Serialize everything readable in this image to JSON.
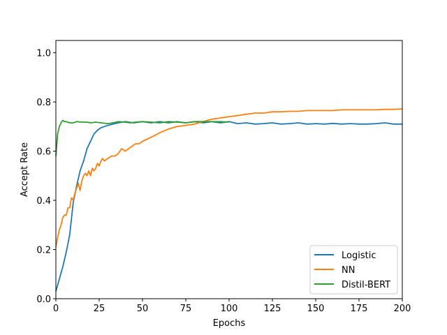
{
  "chart_data": {
    "type": "line",
    "title": "",
    "xlabel": "Epochs",
    "ylabel": "Accept Rate",
    "xlim": [
      0,
      200
    ],
    "ylim": [
      0,
      1.05
    ],
    "xticks": [
      0,
      25,
      50,
      75,
      100,
      125,
      150,
      175,
      200
    ],
    "xtick_labels": [
      "0",
      "25",
      "50",
      "75",
      "100",
      "125",
      "150",
      "175",
      "200"
    ],
    "yticks": [
      0.0,
      0.2,
      0.4,
      0.6,
      0.8,
      1.0
    ],
    "ytick_labels": [
      "0.0",
      "0.2",
      "0.4",
      "0.6",
      "0.8",
      "1.0"
    ],
    "grid": false,
    "legend_position": "lower-right",
    "series": [
      {
        "name": "Logistic",
        "color": "#1f77b4",
        "x": [
          0,
          2,
          4,
          6,
          8,
          10,
          12,
          14,
          16,
          18,
          20,
          22,
          24,
          26,
          28,
          30,
          33,
          36,
          40,
          45,
          50,
          55,
          60,
          65,
          70,
          75,
          80,
          85,
          90,
          95,
          100,
          105,
          110,
          115,
          120,
          125,
          130,
          135,
          140,
          145,
          150,
          155,
          160,
          165,
          170,
          175,
          180,
          185,
          190,
          195,
          200
        ],
        "y": [
          0.03,
          0.08,
          0.13,
          0.19,
          0.26,
          0.39,
          0.46,
          0.52,
          0.56,
          0.61,
          0.64,
          0.67,
          0.685,
          0.695,
          0.7,
          0.705,
          0.71,
          0.715,
          0.72,
          0.715,
          0.72,
          0.715,
          0.72,
          0.715,
          0.72,
          0.715,
          0.72,
          0.715,
          0.72,
          0.715,
          0.72,
          0.712,
          0.715,
          0.71,
          0.712,
          0.715,
          0.71,
          0.712,
          0.715,
          0.71,
          0.712,
          0.71,
          0.713,
          0.71,
          0.712,
          0.71,
          0.71,
          0.712,
          0.715,
          0.71,
          0.71
        ]
      },
      {
        "name": "NN",
        "color": "#ff7f0e",
        "x": [
          0,
          1,
          2,
          3,
          4,
          5,
          6,
          7,
          8,
          9,
          10,
          11,
          12,
          13,
          14,
          15,
          16,
          17,
          18,
          19,
          20,
          21,
          22,
          23,
          24,
          25,
          26,
          27,
          28,
          30,
          32,
          34,
          36,
          38,
          40,
          42,
          44,
          46,
          48,
          50,
          53,
          56,
          60,
          65,
          70,
          75,
          80,
          85,
          90,
          95,
          100,
          105,
          110,
          115,
          120,
          125,
          130,
          135,
          140,
          145,
          150,
          155,
          160,
          165,
          170,
          175,
          180,
          185,
          190,
          195,
          200
        ],
        "y": [
          0.21,
          0.25,
          0.28,
          0.3,
          0.33,
          0.34,
          0.34,
          0.37,
          0.37,
          0.41,
          0.4,
          0.43,
          0.45,
          0.47,
          0.44,
          0.48,
          0.5,
          0.51,
          0.5,
          0.52,
          0.5,
          0.53,
          0.52,
          0.53,
          0.55,
          0.54,
          0.56,
          0.57,
          0.56,
          0.57,
          0.58,
          0.58,
          0.59,
          0.61,
          0.6,
          0.61,
          0.62,
          0.63,
          0.63,
          0.64,
          0.65,
          0.66,
          0.675,
          0.69,
          0.7,
          0.705,
          0.71,
          0.72,
          0.73,
          0.735,
          0.74,
          0.745,
          0.75,
          0.755,
          0.755,
          0.76,
          0.76,
          0.762,
          0.762,
          0.765,
          0.765,
          0.765,
          0.765,
          0.768,
          0.768,
          0.768,
          0.768,
          0.768,
          0.77,
          0.77,
          0.772
        ]
      },
      {
        "name": "Distil-BERT",
        "color": "#2ca02c",
        "x": [
          0,
          1,
          2,
          3,
          4,
          5,
          6,
          8,
          10,
          12,
          15,
          18,
          20,
          23,
          26,
          30,
          33,
          36,
          40,
          43,
          46,
          50,
          55,
          60,
          65,
          70,
          75,
          80,
          85,
          90,
          95,
          100
        ],
        "y": [
          0.58,
          0.67,
          0.7,
          0.715,
          0.725,
          0.72,
          0.72,
          0.715,
          0.715,
          0.72,
          0.718,
          0.718,
          0.715,
          0.718,
          0.715,
          0.712,
          0.715,
          0.72,
          0.718,
          0.715,
          0.718,
          0.72,
          0.718,
          0.715,
          0.72,
          0.718,
          0.715,
          0.72,
          0.72,
          0.72,
          0.72,
          0.718
        ]
      }
    ]
  }
}
